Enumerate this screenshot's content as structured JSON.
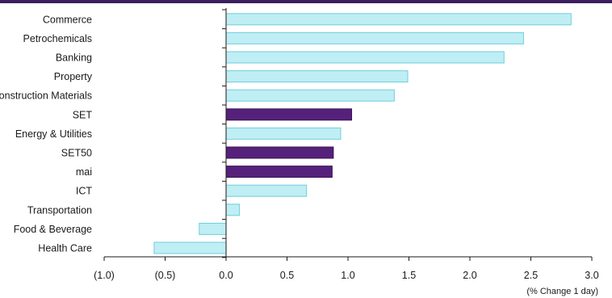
{
  "colors": {
    "top_rule": "#3b1f5e",
    "bar_fill": "#bfeef4",
    "bar_stroke": "#6fcfdc",
    "highlight_fill": "#55217a",
    "highlight_stroke": "#3a1457",
    "axis": "#1a1a1a"
  },
  "chart_data": {
    "type": "bar",
    "orientation": "horizontal",
    "categories": [
      "Commerce",
      "Petrochemicals",
      "Banking",
      "Property",
      "Construction Materials",
      "SET",
      "Energy & Utilities",
      "SET50",
      "mai",
      "ICT",
      "Transportation",
      "Food & Beverage",
      "Health Care"
    ],
    "values": [
      2.83,
      2.44,
      2.28,
      1.49,
      1.38,
      1.03,
      0.94,
      0.88,
      0.87,
      0.66,
      0.11,
      -0.22,
      -0.59
    ],
    "highlight": [
      "SET",
      "SET50",
      "mai"
    ],
    "xlim": [
      -1.0,
      3.0
    ],
    "xticks": [
      -1.0,
      -0.5,
      0.0,
      0.5,
      1.0,
      1.5,
      2.0,
      2.5,
      3.0
    ],
    "xtick_labels": [
      "(1.0)",
      "(0.5)",
      "0.0",
      "0.5",
      "1.0",
      "1.5",
      "2.0",
      "2.5",
      "3.0"
    ],
    "xlabel": "(% Change 1 day)",
    "title": "",
    "grid": false,
    "legend": "none"
  }
}
